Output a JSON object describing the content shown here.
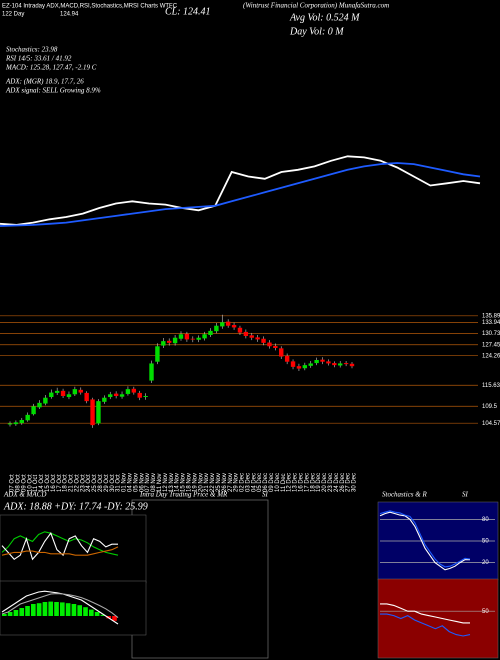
{
  "header": {
    "logo": "EZ-104 Intraday ADX,MACD,RSI,Stochastics,MRSI Charts WTFC",
    "close": "CL: 124.41",
    "left_small": "122 Day",
    "left_value": "124.94",
    "company": "(Wintrust Financial Corporation) MunafaSutra.com",
    "avg_vol": "Avg Vol: 0.524  M",
    "day_vol": "Day Vol: 0  M",
    "stochastics": "Stochastics: 23.98",
    "rsi": "RSI 14/5: 33.61 / 41.92",
    "macd": "MACD: 125.28, 127.47, -2.19 C",
    "adx": "ADX:                (MGR) 18.9, 17.7, 26",
    "adx_signal": "ADX signal: SELL Growing 8.9%",
    "intraday_title": "Intra Day Trading Price & MR",
    "intraday_title_end": "SI"
  },
  "chart_data": [
    {
      "type": "line",
      "ylim": [
        98,
        138
      ],
      "series": [
        {
          "color": "#ffffff",
          "values": [
            103,
            102.5,
            103.5,
            105,
            106,
            107.5,
            110,
            112,
            113,
            112,
            111.5,
            110,
            109,
            111,
            126,
            124,
            123,
            126,
            127,
            128.5,
            131,
            133,
            132.5,
            131,
            128,
            124,
            120,
            121,
            122,
            121
          ]
        },
        {
          "color": "#1e5bff",
          "values": [
            102,
            102.2,
            102.5,
            103,
            103.5,
            104.5,
            105.5,
            106.5,
            107.5,
            108.5,
            109.5,
            110,
            110.5,
            111,
            113,
            115,
            117,
            119,
            121,
            123,
            125,
            127,
            128.5,
            129.5,
            130,
            129.5,
            128,
            126.5,
            125,
            124
          ]
        }
      ]
    },
    {
      "type": "candlestick",
      "ylim": [
        102,
        137
      ],
      "yticks": [
        135.89,
        133.94,
        130.73,
        127.45,
        124.26,
        115.63,
        109.5,
        104.57
      ],
      "grid_color": "#b3590a",
      "up_color": "#00dd00",
      "down_color": "#ff0000",
      "categories": [
        "07 Oct",
        "08 Oct",
        "09 Oct",
        "10 Oct",
        "11 Oct",
        "14 Oct",
        "15 Oct",
        "16 Oct",
        "17 Oct",
        "18 Oct",
        "21 Oct",
        "22 Oct",
        "23 Oct",
        "24 Oct",
        "25 Oct",
        "28 Oct",
        "29 Oct",
        "30 Oct",
        "31 Oct",
        "01 Nov",
        "04 Nov",
        "05 Nov",
        "06 Nov",
        "07 Nov",
        "08 Nov",
        "11 Nov",
        "12 Nov",
        "13 Nov",
        "14 Nov",
        "15 Nov",
        "18 Nov",
        "19 Nov",
        "20 Nov",
        "21 Nov",
        "22 Nov",
        "25 Nov",
        "26 Nov",
        "27 Nov",
        "29 Nov",
        "02 Dec",
        "03 Dec",
        "04 Dec",
        "05 Dec",
        "06 Dec",
        "09 Dec",
        "10 Dec",
        "11 Dec",
        "12 Dec",
        "13 Dec",
        "16 Dec",
        "17 Dec",
        "18 Dec",
        "19 Dec",
        "20 Dec",
        "23 Dec",
        "24 Dec",
        "26 Dec",
        "27 Dec",
        "30 Dec"
      ],
      "open": [
        104.2,
        104.3,
        104.6,
        105.4,
        107.2,
        109.2,
        110.3,
        112.2,
        113.4,
        114,
        112.2,
        113,
        114.3,
        113.4,
        111.5,
        104.5,
        110.8,
        112.2,
        113.2,
        112.3,
        113.1,
        114.6,
        113.4,
        112.2,
        117,
        122.5,
        127.2,
        128.6,
        127.9,
        129.2,
        130.6,
        129.2,
        128.9,
        129.3,
        130.3,
        131.4,
        132.8,
        134.2,
        133.2,
        132.4,
        131.2,
        130.2,
        129.6,
        129.2,
        128.1,
        127.1,
        126.4,
        124.2,
        122.6,
        121.2,
        120.6,
        121.3,
        122.1,
        123.1,
        122.6,
        122.1,
        121.4,
        122.1,
        121.9
      ],
      "high": [
        105.1,
        105.4,
        106.1,
        107.7,
        110.2,
        111.3,
        112.8,
        114.4,
        114.9,
        114.6,
        113.8,
        115.2,
        115,
        113.9,
        112,
        111.6,
        112.7,
        113.7,
        113.9,
        113.8,
        115.3,
        115.2,
        114,
        113.3,
        122.8,
        127.9,
        129.4,
        129.3,
        130.3,
        131.4,
        131.2,
        129.9,
        130.2,
        131.2,
        132.3,
        133.8,
        136.2,
        134.9,
        133.9,
        133,
        131.9,
        130.9,
        130.3,
        129.9,
        128.8,
        127.8,
        127,
        124.9,
        123.2,
        121.9,
        122.2,
        122.7,
        123.7,
        123.8,
        123.2,
        122.6,
        122.7,
        122.7,
        122.4
      ],
      "low": [
        103.6,
        103.8,
        104.1,
        105,
        106.8,
        108.7,
        109.8,
        111.7,
        112.8,
        111.9,
        111.6,
        112.5,
        112.9,
        110.4,
        103.2,
        104,
        110.2,
        111.6,
        111.8,
        111.7,
        112.6,
        112.9,
        111.3,
        111.4,
        116.3,
        121.8,
        126.5,
        127.2,
        127.2,
        128.6,
        128.3,
        128.2,
        128.2,
        128.7,
        129.7,
        130.8,
        132.1,
        132.4,
        131.8,
        130.3,
        129.3,
        128.8,
        128.3,
        127.3,
        126.3,
        125.8,
        123.3,
        121.8,
        120.3,
        119.8,
        120,
        120.7,
        121.5,
        121.8,
        121.4,
        120.9,
        120.8,
        121.2,
        120.6
      ],
      "close": [
        104.5,
        104.8,
        105.5,
        107,
        109.5,
        110.5,
        112,
        113.5,
        114,
        112.5,
        113,
        114.5,
        113.5,
        111,
        104,
        111,
        112,
        113,
        112.5,
        113,
        114.5,
        113.5,
        112,
        112.5,
        122,
        127,
        128.5,
        128,
        129.5,
        130.5,
        129,
        129,
        129.5,
        130.5,
        131.5,
        133,
        134,
        133,
        132.5,
        131,
        130,
        129.5,
        129,
        128,
        127,
        126.5,
        124,
        122.5,
        121,
        120.5,
        121.5,
        122,
        123,
        122.5,
        122,
        121.5,
        122,
        121.8,
        121.2
      ]
    },
    {
      "type": "line",
      "title": "ADX  & MACD",
      "subtitle": "ADX: 18.88  +DY: 17.74  -DY: 25.99",
      "ylim": [
        0,
        45
      ],
      "background": "#000000",
      "series": [
        {
          "color": "#00cc00",
          "values": [
            20,
            24,
            30,
            32,
            30,
            28,
            33,
            35,
            34,
            32,
            30,
            28,
            30,
            29,
            27,
            24,
            22,
            20,
            19,
            18
          ]
        },
        {
          "color": "#ffffff",
          "values": [
            25,
            20,
            15,
            18,
            30,
            15,
            20,
            28,
            34,
            22,
            18,
            30,
            32,
            25,
            20,
            30,
            28,
            24,
            26,
            26
          ]
        },
        {
          "color": "#cc6600",
          "values": [
            18,
            19,
            20,
            20,
            21,
            21,
            20,
            20,
            19,
            19,
            19,
            19,
            18,
            18,
            18,
            19,
            20,
            21,
            22,
            24
          ]
        }
      ]
    },
    {
      "type": "bar",
      "ylim": [
        -4,
        8
      ],
      "color": "#00ee00",
      "negative_color": "#ff0000",
      "background": "#000000",
      "values": [
        0.5,
        1,
        1.5,
        2,
        2.5,
        3,
        3.2,
        3.5,
        3.6,
        3.5,
        3.4,
        3.2,
        3,
        2.7,
        2.2,
        1.6,
        1,
        0.3,
        -0.6,
        -1.2
      ],
      "series": [
        {
          "color": "#ffffff",
          "values": [
            1,
            2,
            3,
            4,
            5,
            5.5,
            6,
            6.2,
            6,
            5.8,
            5.5,
            5,
            4.5,
            4,
            3,
            2,
            1,
            0,
            -1,
            -2
          ]
        },
        {
          "color": "#aaaaaa",
          "values": [
            0.5,
            1,
            2,
            3,
            3.5,
            4,
            4.5,
            5,
            5.5,
            5.6,
            5.5,
            5.3,
            5,
            4.6,
            4,
            3.3,
            2.6,
            1.8,
            0.8,
            -0.4
          ]
        }
      ]
    },
    {
      "type": "line",
      "title": "Stochastics & R",
      "title_end": "SI",
      "ylim": [
        0,
        100
      ],
      "yticks": [
        20,
        50,
        80
      ],
      "background": "#000066",
      "series": [
        {
          "color": "#ffffff",
          "values": [
            85,
            88,
            90,
            88,
            86,
            85,
            80,
            70,
            55,
            40,
            30,
            20,
            15,
            10,
            12,
            15,
            20,
            24,
            23.98
          ]
        },
        {
          "color": "#1e5bff",
          "values": [
            88,
            90,
            92,
            90,
            89,
            86,
            84,
            75,
            60,
            45,
            35,
            25,
            18,
            14,
            15,
            18,
            22,
            26,
            25
          ]
        }
      ]
    },
    {
      "type": "line",
      "ylim": [
        20,
        70
      ],
      "yticks": [
        50
      ],
      "background": "#8b0000",
      "series": [
        {
          "color": "#ffffff",
          "values": [
            55,
            55,
            54,
            52,
            50,
            50,
            48,
            47,
            46,
            45,
            44,
            43,
            42,
            42
          ]
        },
        {
          "color": "#1e5bff",
          "values": [
            48,
            48,
            47,
            45,
            47,
            44,
            42,
            40,
            38,
            40,
            36,
            34,
            33,
            34
          ]
        }
      ]
    }
  ]
}
